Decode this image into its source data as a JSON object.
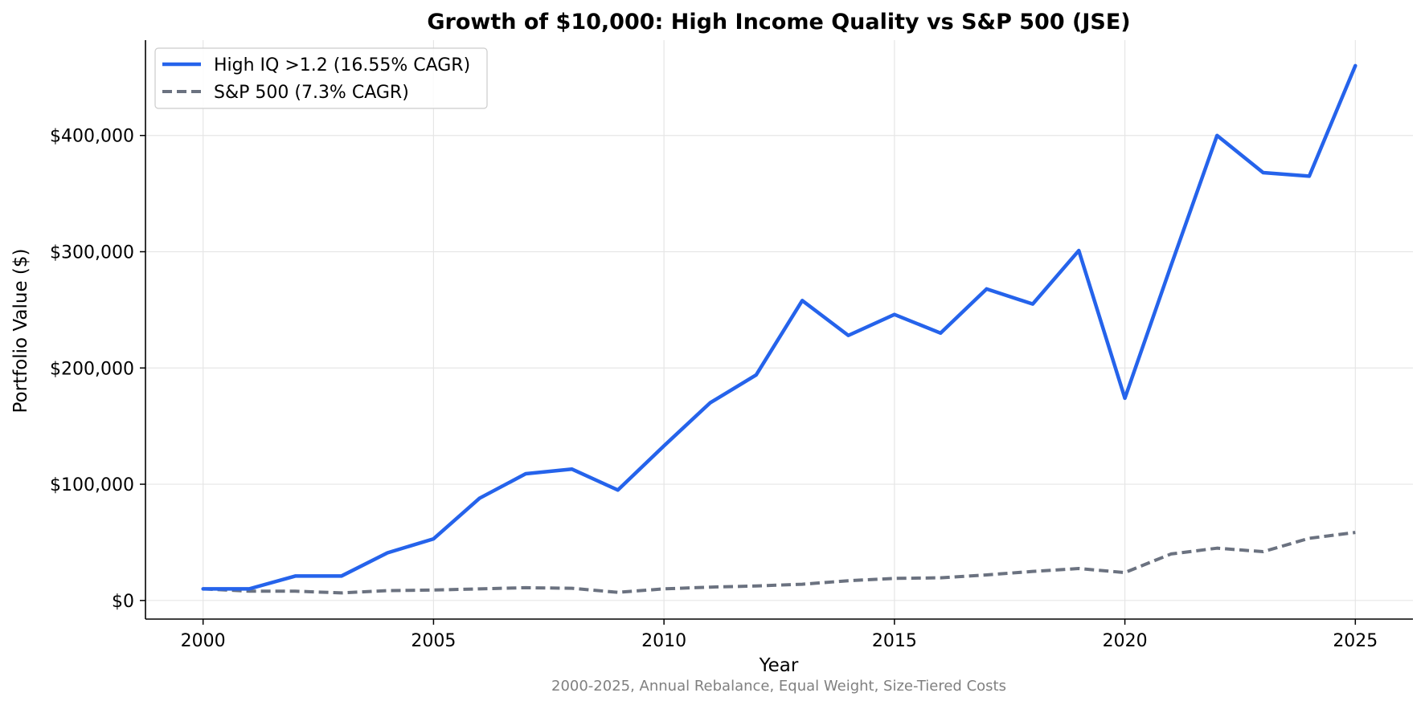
{
  "chart_data": {
    "type": "line",
    "title": "Growth of $10,000: High Income Quality vs S&P 500 (JSE)",
    "subtitle": "2000-2025, Annual Rebalance, Equal Weight, Size-Tiered Costs",
    "xlabel": "Year",
    "ylabel": "Portfolio Value ($)",
    "xlim": [
      1998.75,
      2026.25
    ],
    "ylim": [
      -16000,
      482000
    ],
    "x_ticks": [
      2000,
      2005,
      2010,
      2015,
      2020,
      2025
    ],
    "y_ticks": [
      0,
      100000,
      200000,
      300000,
      400000
    ],
    "y_tick_labels": [
      "$0",
      "$100,000",
      "$200,000",
      "$300,000",
      "$400,000"
    ],
    "grid": true,
    "legend_position": "top-left",
    "x": [
      2000,
      2001,
      2002,
      2003,
      2004,
      2005,
      2006,
      2007,
      2008,
      2009,
      2010,
      2011,
      2012,
      2013,
      2014,
      2015,
      2016,
      2017,
      2018,
      2019,
      2020,
      2021,
      2022,
      2023,
      2024,
      2025
    ],
    "series": [
      {
        "name": "High IQ >1.2 (16.55% CAGR)",
        "color": "#2563eb",
        "style": "solid",
        "values": [
          10000,
          10000,
          21000,
          21000,
          41000,
          53000,
          88000,
          109000,
          113000,
          95000,
          133000,
          170000,
          194000,
          258000,
          228000,
          246000,
          230000,
          268000,
          255000,
          301000,
          174000,
          288000,
          400000,
          368000,
          365000,
          460000
        ]
      },
      {
        "name": "S&P 500 (7.3% CAGR)",
        "color": "#6b7280",
        "style": "dashed",
        "values": [
          10000,
          8000,
          8000,
          6500,
          8500,
          9000,
          10000,
          11000,
          10500,
          7000,
          10000,
          11500,
          12500,
          14000,
          17000,
          19000,
          19500,
          22000,
          25000,
          27500,
          24000,
          40000,
          45000,
          42000,
          53500,
          58500
        ]
      }
    ]
  }
}
